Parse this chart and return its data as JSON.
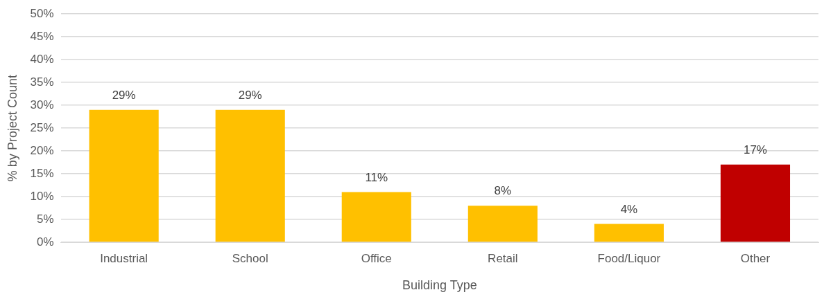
{
  "chart_data": {
    "type": "bar",
    "xlabel": "Building Type",
    "ylabel": "% by Project Count",
    "categories": [
      "Industrial",
      "School",
      "Office",
      "Retail",
      "Food/Liquor",
      "Other"
    ],
    "values": [
      29,
      29,
      11,
      8,
      4,
      17
    ],
    "colors": [
      "#ffc000",
      "#ffc000",
      "#ffc000",
      "#ffc000",
      "#ffc000",
      "#c00000"
    ],
    "value_labels": [
      "29%",
      "29%",
      "11%",
      "8%",
      "4%",
      "17%"
    ],
    "ylim": [
      0,
      50
    ],
    "yticks": [
      {
        "value": 0,
        "label": "0%"
      },
      {
        "value": 5,
        "label": "5%"
      },
      {
        "value": 10,
        "label": "10%"
      },
      {
        "value": 15,
        "label": "15%"
      },
      {
        "value": 20,
        "label": "20%"
      },
      {
        "value": 25,
        "label": "25%"
      },
      {
        "value": 30,
        "label": "30%"
      },
      {
        "value": 35,
        "label": "35%"
      },
      {
        "value": 40,
        "label": "40%"
      },
      {
        "value": 45,
        "label": "45%"
      },
      {
        "value": 50,
        "label": "50%"
      }
    ],
    "grid": "y",
    "legend": false
  }
}
